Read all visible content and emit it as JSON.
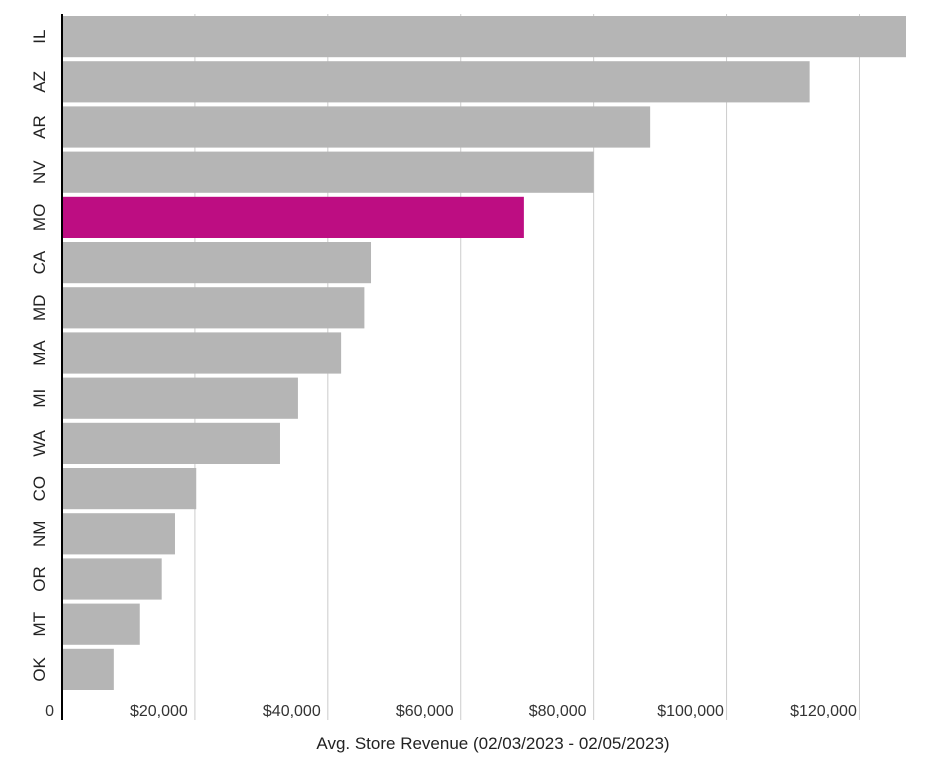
{
  "chart_data": {
    "type": "bar",
    "orientation": "horizontal",
    "categories": [
      "IL",
      "AZ",
      "AR",
      "NV",
      "MO",
      "CA",
      "MD",
      "MA",
      "MI",
      "WA",
      "CO",
      "NM",
      "OR",
      "MT",
      "OK"
    ],
    "values": [
      127000,
      112500,
      88500,
      80000,
      69500,
      46500,
      45500,
      42000,
      35500,
      32800,
      20200,
      17000,
      15000,
      11700,
      7800
    ],
    "highlight": "MO",
    "colors": {
      "bar": "#b5b5b5",
      "highlight": "#bd0d82",
      "grid": "#cccccc",
      "axis": "#000000"
    },
    "xlabel": "Avg. Store Revenue (02/03/2023 - 02/05/2023)",
    "ylabel": "",
    "title": "",
    "xlim": [
      0,
      127000
    ],
    "xticks": [
      0,
      20000,
      40000,
      60000,
      80000,
      100000,
      120000
    ],
    "xtick_labels": [
      "0",
      "$20,000",
      "$40,000",
      "$60,000",
      "$80,000",
      "$100,000",
      "$120,000"
    ],
    "grid": true,
    "legend": "none"
  }
}
